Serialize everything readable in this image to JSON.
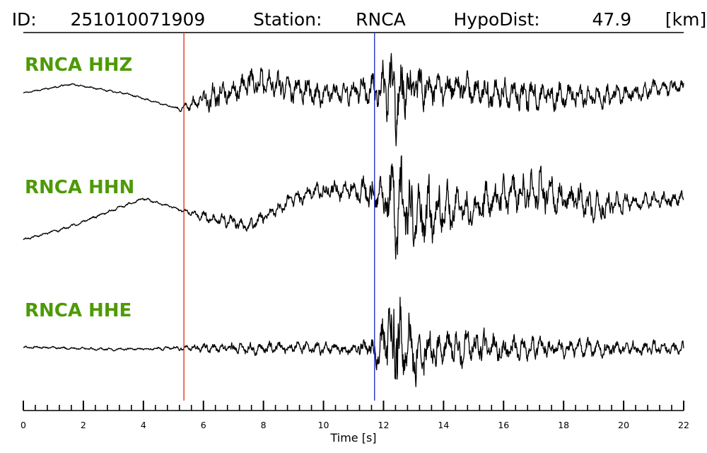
{
  "chart_data": {
    "type": "line",
    "title": {
      "id_label": "ID:",
      "id": "251010071909",
      "station_label": "Station:",
      "station": "RNCA",
      "dist_label": "HypoDist:",
      "dist": "47.9",
      "dist_unit": "[km]"
    },
    "xlabel": "Time [s]",
    "xlim": [
      0,
      22
    ],
    "x_ticks": [
      "0",
      "2",
      "4",
      "6",
      "8",
      "10",
      "12",
      "14",
      "16",
      "18",
      "20",
      "22"
    ],
    "minor_tick_step": 0.4,
    "picks": [
      {
        "phase": "P",
        "time": 5.35,
        "color": "#e8331f"
      },
      {
        "phase": "S",
        "time": 11.7,
        "color": "#2434c8"
      }
    ],
    "series": [
      {
        "name": "RNCA HHZ",
        "color": "#000000",
        "label_color": "#4e9a06",
        "envelope": {
          "t": [
            0,
            1,
            1.5,
            2,
            3,
            4,
            5,
            5.4,
            6,
            7,
            8,
            9,
            10,
            11,
            11.7,
            12,
            12.3,
            12.6,
            13,
            14,
            15,
            16,
            17,
            18,
            19,
            20,
            21,
            22
          ],
          "amp": [
            0.01,
            0.015,
            0.015,
            0.015,
            0.015,
            0.015,
            0.015,
            0.06,
            0.2,
            0.22,
            0.24,
            0.25,
            0.2,
            0.2,
            0.25,
            0.5,
            1.0,
            0.65,
            0.35,
            0.28,
            0.28,
            0.26,
            0.28,
            0.22,
            0.2,
            0.15,
            0.15,
            0.12
          ]
        },
        "trend": {
          "t": [
            0,
            1.6,
            3.5,
            5.2,
            5.8,
            8,
            10,
            12,
            14,
            16,
            18,
            20,
            22
          ],
          "v": [
            -0.06,
            0.08,
            -0.08,
            -0.32,
            -0.2,
            0.12,
            -0.1,
            0.02,
            0.05,
            -0.08,
            -0.12,
            -0.08,
            0.05
          ]
        },
        "peak_amplitude": 1.0,
        "seed": 17
      },
      {
        "name": "RNCA HHN",
        "color": "#000000",
        "label_color": "#4e9a06",
        "envelope": {
          "t": [
            0,
            1,
            2,
            3,
            4,
            5,
            5.4,
            6,
            7,
            8,
            9,
            10,
            11,
            11.7,
            12,
            12.4,
            13,
            14,
            15,
            16,
            17,
            18,
            19,
            20,
            21,
            22
          ],
          "amp": [
            0.015,
            0.02,
            0.02,
            0.02,
            0.02,
            0.02,
            0.03,
            0.08,
            0.1,
            0.1,
            0.12,
            0.15,
            0.15,
            0.35,
            0.45,
            0.8,
            0.55,
            0.38,
            0.3,
            0.3,
            0.35,
            0.25,
            0.2,
            0.15,
            0.12,
            0.12
          ]
        },
        "trend": {
          "t": [
            0,
            1.5,
            4,
            5.5,
            7.5,
            9.5,
            11.5,
            13,
            15,
            17,
            19,
            22
          ],
          "v": [
            -0.5,
            -0.32,
            0.1,
            -0.1,
            -0.3,
            0.2,
            0.22,
            -0.18,
            0.0,
            0.25,
            0.0,
            0.1
          ]
        },
        "peak_amplitude": 1.0,
        "seed": 29
      },
      {
        "name": "RNCA HHE",
        "color": "#000000",
        "label_color": "#4e9a06",
        "envelope": {
          "t": [
            0,
            2,
            4,
            5,
            5.4,
            6,
            8,
            10,
            11,
            11.7,
            12,
            12.4,
            12.8,
            13.2,
            14,
            15,
            16,
            17,
            18,
            19,
            20,
            21,
            22
          ],
          "amp": [
            0.02,
            0.02,
            0.02,
            0.03,
            0.04,
            0.08,
            0.1,
            0.1,
            0.1,
            0.2,
            0.5,
            1.0,
            0.65,
            0.45,
            0.32,
            0.28,
            0.22,
            0.2,
            0.16,
            0.14,
            0.12,
            0.12,
            0.12
          ]
        },
        "trend": {
          "t": [
            0,
            3,
            5,
            8,
            11,
            14,
            18,
            22
          ],
          "v": [
            0.02,
            -0.02,
            0.0,
            0.0,
            0.0,
            0.0,
            0.0,
            0.0
          ]
        },
        "peak_amplitude": 1.0,
        "seed": 43
      }
    ]
  }
}
